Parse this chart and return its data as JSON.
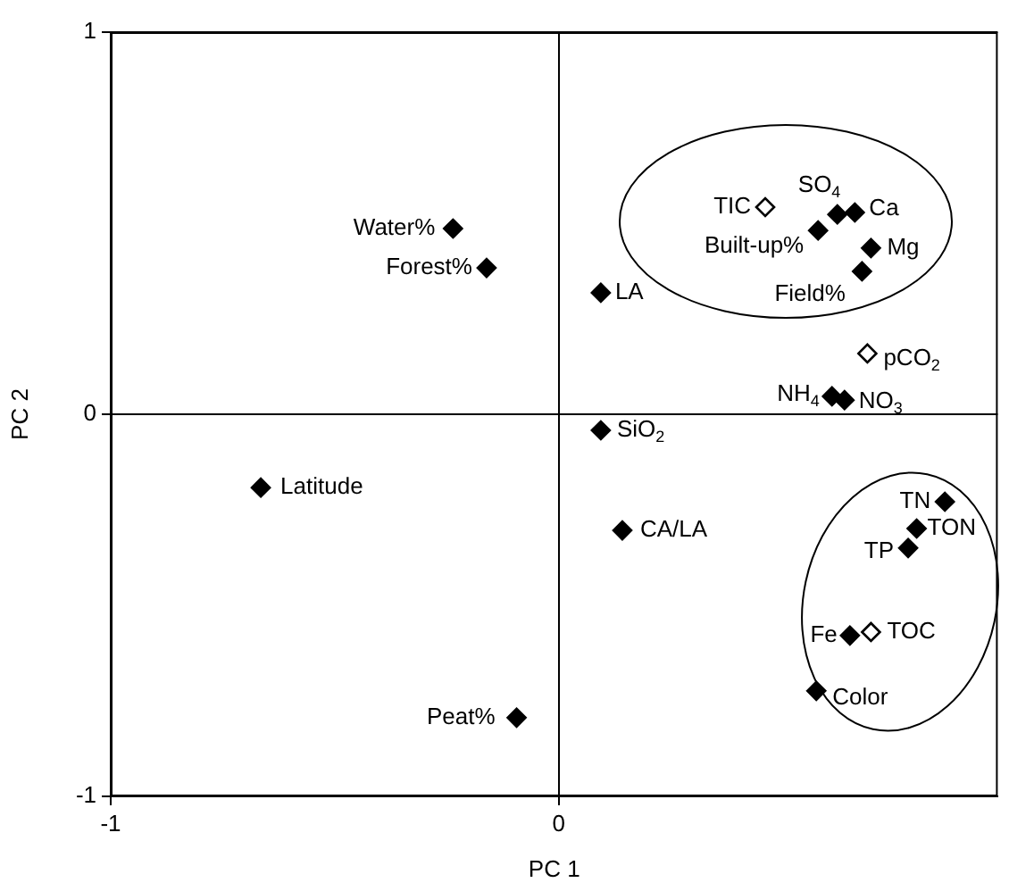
{
  "chart_data": {
    "type": "scatter",
    "xlabel": "PC 1",
    "ylabel": "PC 2",
    "xlim": [
      -1,
      0.98
    ],
    "ylim": [
      -1,
      1
    ],
    "xticks": [
      -1,
      0
    ],
    "yticks": [
      -1,
      0,
      1
    ],
    "grid": true,
    "legend": false,
    "marker": "diamond",
    "series": [
      {
        "color": "#000000",
        "x": [
          -0.236,
          -0.161,
          0.094,
          0.622,
          0.661,
          0.579,
          0.697,
          0.677,
          0.61,
          0.638,
          0.094,
          -0.665,
          0.142,
          0.862,
          0.799,
          0.78,
          0.65,
          0.575,
          -0.094
        ],
        "values": [
          0.486,
          0.383,
          0.318,
          0.523,
          0.528,
          0.481,
          0.435,
          0.374,
          0.047,
          0.037,
          -0.042,
          -0.192,
          -0.304,
          -0.229,
          -0.299,
          -0.35,
          -0.579,
          -0.724,
          -0.794
        ]
      },
      {
        "color": "#000000",
        "x": [
          0.461,
          0.689,
          0.697
        ],
        "values": [
          0.542,
          0.159,
          -0.57
        ]
      }
    ],
    "annotations": [
      {
        "text": "Water%",
        "x": -0.236,
        "y": 0.486
      },
      {
        "text": "Forest%",
        "x": -0.161,
        "y": 0.383
      },
      {
        "text": "LA",
        "x": 0.094,
        "y": 0.318
      },
      {
        "text": "TIC",
        "x": 0.461,
        "y": 0.542
      },
      {
        "text": "SO$_{4}$",
        "x": 0.622,
        "y": 0.523
      },
      {
        "text": "Ca",
        "x": 0.661,
        "y": 0.528
      },
      {
        "text": "Built-up%",
        "x": 0.579,
        "y": 0.481
      },
      {
        "text": "Mg",
        "x": 0.697,
        "y": 0.435
      },
      {
        "text": "Field%",
        "x": 0.677,
        "y": 0.374
      },
      {
        "text": "pCO$_{2}$",
        "x": 0.689,
        "y": 0.159
      },
      {
        "text": "NH$_{4}$",
        "x": 0.61,
        "y": 0.047
      },
      {
        "text": "NO$_{3}$",
        "x": 0.638,
        "y": 0.037
      },
      {
        "text": "SiO$_{2}$",
        "x": 0.094,
        "y": -0.042
      },
      {
        "text": "Latitude",
        "x": -0.665,
        "y": -0.192
      },
      {
        "text": "CA/LA",
        "x": 0.142,
        "y": -0.304
      },
      {
        "text": "TN",
        "x": 0.862,
        "y": -0.229
      },
      {
        "text": "TON",
        "x": 0.799,
        "y": -0.299
      },
      {
        "text": "TP",
        "x": 0.78,
        "y": -0.35
      },
      {
        "text": "TOC",
        "x": 0.697,
        "y": -0.57
      },
      {
        "text": "Fe",
        "x": 0.65,
        "y": -0.579
      },
      {
        "text": "Color",
        "x": 0.575,
        "y": -0.724
      },
      {
        "text": "Peat%",
        "x": -0.094,
        "y": -0.794
      }
    ]
  }
}
